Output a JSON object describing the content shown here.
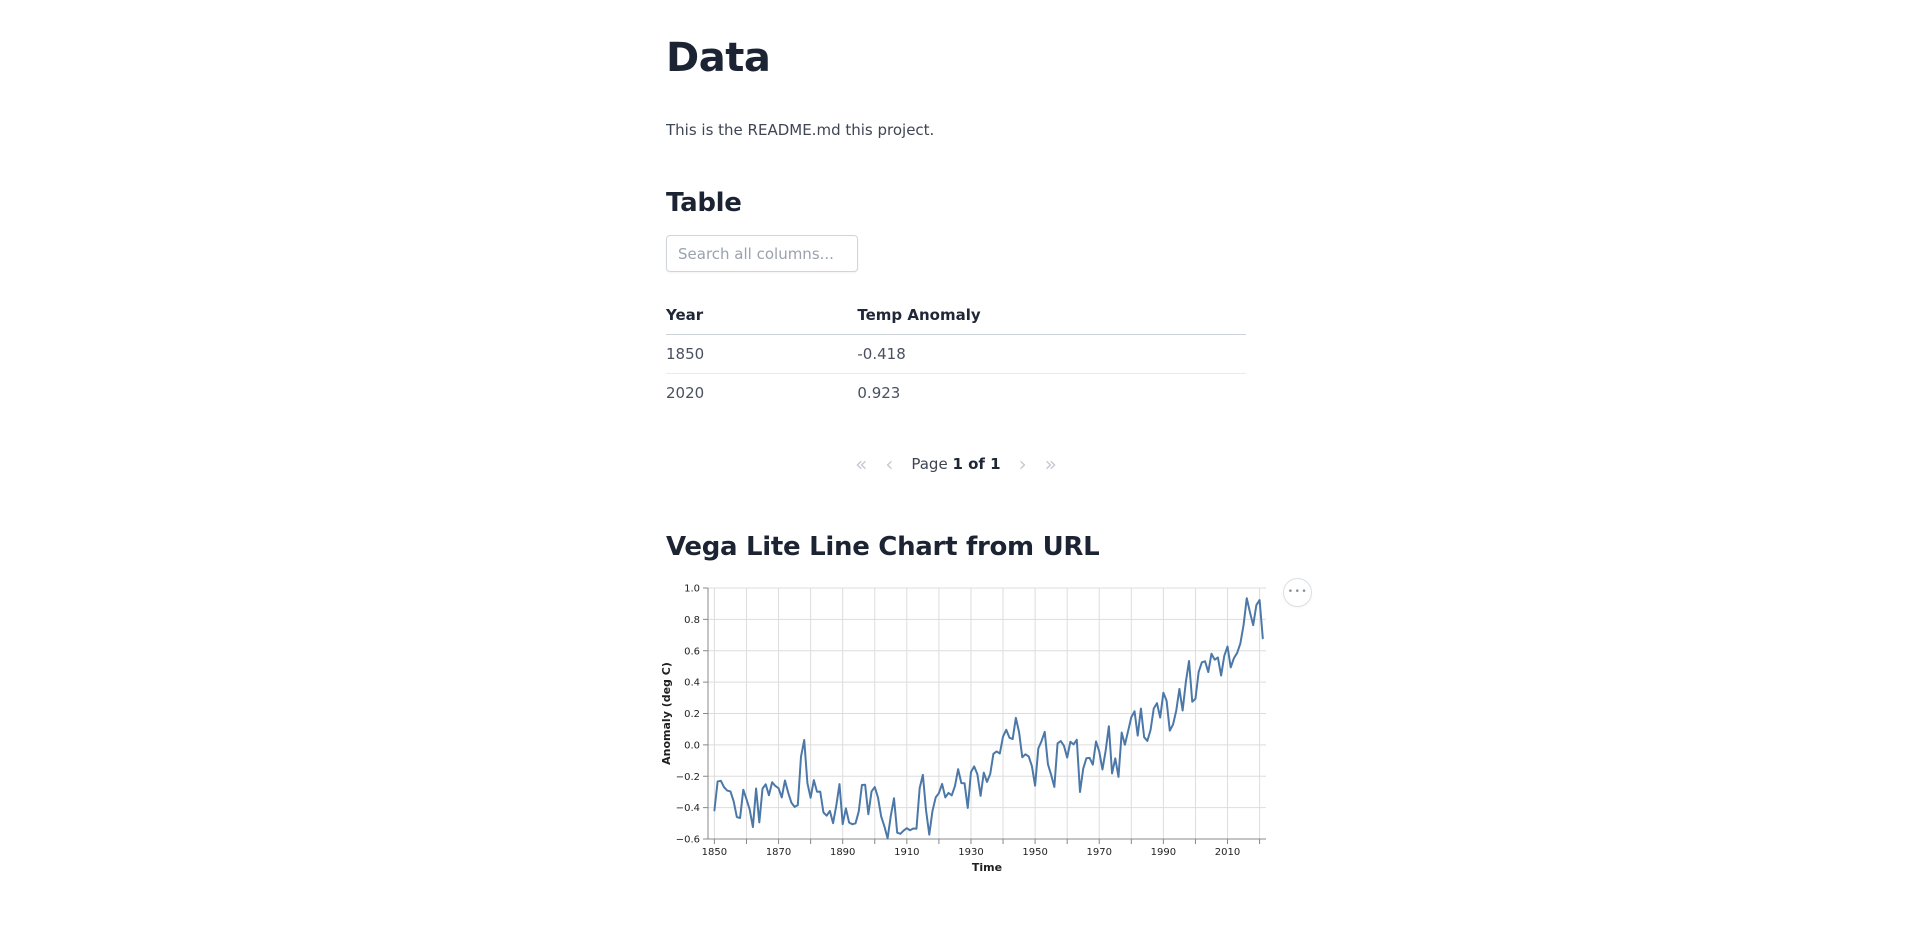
{
  "page": {
    "heading": "Data",
    "intro": "This is the README.md this project."
  },
  "table_section": {
    "heading": "Table",
    "search_placeholder": "Search all columns...",
    "columns": {
      "year": "Year",
      "temp": "Temp Anomaly"
    },
    "rows": [
      {
        "year": "1850",
        "temp_anomaly": "-0.418"
      },
      {
        "year": "2020",
        "temp_anomaly": "0.923"
      }
    ],
    "pagination": {
      "first_icon": "«",
      "prev_icon": "‹",
      "page_label": "Page",
      "page_value": "1 of 1",
      "next_icon": "›",
      "last_icon": "»"
    }
  },
  "chart_section": {
    "heading": "Vega Lite Line Chart from URL",
    "actions_icon": "•••"
  },
  "chart_data": {
    "type": "line",
    "title": "",
    "xlabel": "Time",
    "ylabel": "Anomaly (deg C)",
    "x_domain": [
      1848,
      2022
    ],
    "ylim": [
      -0.6,
      1.0
    ],
    "grid": true,
    "legend_position": "none",
    "line_color": "#4c78a8",
    "grid_color": "#dddddd",
    "axis_color": "#888888",
    "label_color": "#1f1f1f",
    "x_grid_step": 10,
    "x_grid_start": 1850,
    "x_grid_end": 2020,
    "x_label_ticks": [
      1850,
      1870,
      1890,
      1910,
      1930,
      1950,
      1970,
      1990,
      2010
    ],
    "y_ticks": [
      -0.6,
      -0.4,
      -0.2,
      0.0,
      0.2,
      0.4,
      0.6,
      0.8,
      1.0
    ],
    "series": [
      {
        "name": "Temp Anomaly",
        "start_year": 1850,
        "values": [
          -0.418,
          -0.233,
          -0.229,
          -0.27,
          -0.291,
          -0.297,
          -0.36,
          -0.46,
          -0.466,
          -0.286,
          -0.346,
          -0.412,
          -0.524,
          -0.278,
          -0.494,
          -0.279,
          -0.251,
          -0.321,
          -0.238,
          -0.262,
          -0.276,
          -0.335,
          -0.227,
          -0.304,
          -0.368,
          -0.395,
          -0.384,
          -0.075,
          0.031,
          -0.244,
          -0.337,
          -0.225,
          -0.299,
          -0.298,
          -0.431,
          -0.451,
          -0.421,
          -0.499,
          -0.387,
          -0.25,
          -0.505,
          -0.405,
          -0.495,
          -0.506,
          -0.5,
          -0.425,
          -0.256,
          -0.254,
          -0.442,
          -0.297,
          -0.269,
          -0.335,
          -0.456,
          -0.519,
          -0.596,
          -0.453,
          -0.34,
          -0.56,
          -0.567,
          -0.546,
          -0.531,
          -0.544,
          -0.533,
          -0.535,
          -0.276,
          -0.191,
          -0.418,
          -0.572,
          -0.421,
          -0.335,
          -0.307,
          -0.249,
          -0.335,
          -0.306,
          -0.322,
          -0.263,
          -0.155,
          -0.244,
          -0.245,
          -0.402,
          -0.174,
          -0.137,
          -0.187,
          -0.325,
          -0.177,
          -0.236,
          -0.186,
          -0.057,
          -0.042,
          -0.055,
          0.053,
          0.096,
          0.046,
          0.037,
          0.172,
          0.081,
          -0.079,
          -0.06,
          -0.074,
          -0.135,
          -0.26,
          -0.023,
          0.024,
          0.083,
          -0.123,
          -0.191,
          -0.268,
          0.009,
          0.024,
          -0.006,
          -0.081,
          0.02,
          0.003,
          0.033,
          -0.3,
          -0.152,
          -0.085,
          -0.083,
          -0.126,
          0.022,
          -0.042,
          -0.157,
          -0.037,
          0.119,
          -0.182,
          -0.086,
          -0.204,
          0.079,
          0.001,
          0.088,
          0.176,
          0.214,
          0.059,
          0.231,
          0.049,
          0.025,
          0.095,
          0.232,
          0.266,
          0.174,
          0.332,
          0.281,
          0.091,
          0.129,
          0.217,
          0.357,
          0.219,
          0.4,
          0.535,
          0.275,
          0.294,
          0.465,
          0.526,
          0.533,
          0.464,
          0.581,
          0.543,
          0.557,
          0.442,
          0.568,
          0.627,
          0.494,
          0.553,
          0.586,
          0.646,
          0.763,
          0.935,
          0.845,
          0.763,
          0.891,
          0.923,
          0.68
        ]
      }
    ]
  },
  "colors": {
    "heading": "#1c2434",
    "body_text": "#3e4554",
    "accent_line": "#4c78a8",
    "border": "#ccd1d8",
    "row_border": "#e8eaee",
    "muted_icon": "#c5cad2"
  }
}
